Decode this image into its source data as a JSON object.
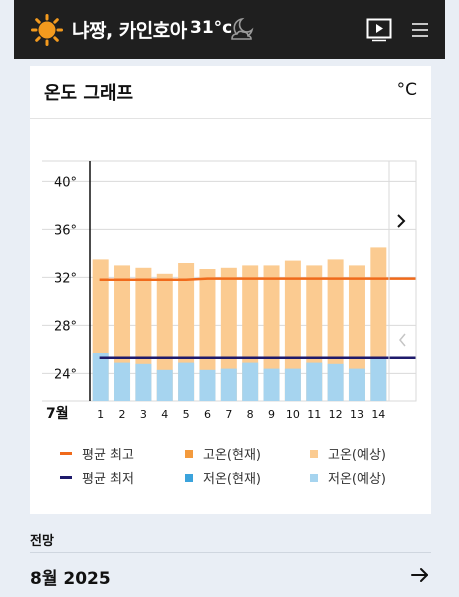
{
  "header": {
    "location": "냐짱, 카인호아",
    "temperature": "31°c",
    "weather_icon": "sun-icon",
    "night_icon": "moon-cloud-icon",
    "video_icon": "play-video-icon",
    "menu_icon": "hamburger-menu-icon"
  },
  "card": {
    "title": "온도 그래프",
    "unit": "°C"
  },
  "chart_data": {
    "type": "bar",
    "month_label": "7월",
    "categories": [
      "1",
      "2",
      "3",
      "4",
      "5",
      "6",
      "7",
      "8",
      "9",
      "10",
      "11",
      "12",
      "13",
      "14"
    ],
    "series": [
      {
        "name": "고온(현재)",
        "values": [
          33.5,
          33,
          32.8,
          32.3,
          33.2,
          32.7,
          32.8,
          33,
          33,
          33.4,
          33,
          33.5,
          33,
          34.5
        ]
      },
      {
        "name": "저온(현재)",
        "values": [
          25.7,
          24.9,
          24.8,
          24.3,
          24.9,
          24.3,
          24.4,
          24.9,
          24.4,
          24.4,
          24.9,
          24.8,
          24.4,
          25.2
        ]
      },
      {
        "name": "평균 최고",
        "values": [
          31.8,
          31.8,
          31.8,
          31.8,
          31.8,
          31.9,
          31.9,
          31.9,
          31.9,
          31.9,
          31.9,
          31.9,
          31.9,
          31.9
        ]
      },
      {
        "name": "평균 최저",
        "values": [
          25.3,
          25.3,
          25.3,
          25.3,
          25.3,
          25.3,
          25.3,
          25.3,
          25.3,
          25.3,
          25.3,
          25.3,
          25.3,
          25.3
        ]
      }
    ],
    "y_ticks": [
      "40°",
      "36°",
      "32°",
      "28°",
      "24°"
    ],
    "y_tick_values": [
      40,
      36,
      32,
      28,
      24
    ],
    "ylim": [
      21.7,
      41.7
    ],
    "colors": {
      "high_forecast": "#fbcb91",
      "low_forecast": "#a6d4ef",
      "high_current": "#f39a3d",
      "low_current": "#3ba3dc",
      "avg_high": "#f06a1b",
      "avg_low": "#1e1a6b"
    },
    "legend": [
      {
        "label": "평균 최고",
        "kind": "line",
        "color": "#f06a1b"
      },
      {
        "label": "고온(현재)",
        "kind": "box",
        "color": "#f39a3d"
      },
      {
        "label": "고온(예상)",
        "kind": "box",
        "color": "#fbcb91"
      },
      {
        "label": "평균 최저",
        "kind": "line",
        "color": "#1e1a6b"
      },
      {
        "label": "저온(현재)",
        "kind": "box",
        "color": "#3ba3dc"
      },
      {
        "label": "저온(예상)",
        "kind": "box",
        "color": "#a6d4ef"
      }
    ]
  },
  "nav": {
    "next_icon": "chevron-right-icon",
    "prev_icon": "chevron-left-icon"
  },
  "outlook": {
    "label": "전망",
    "month": "8월 2025",
    "arrow_icon": "arrow-right-icon"
  }
}
